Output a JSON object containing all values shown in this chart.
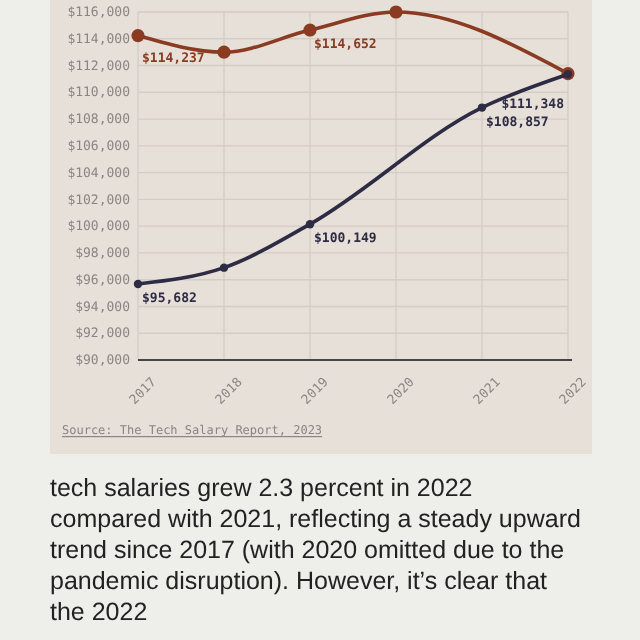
{
  "chart_data": {
    "type": "line",
    "categories": [
      "2017",
      "2018",
      "2019",
      "2020",
      "2021",
      "2022"
    ],
    "series": [
      {
        "color": "#8a3b22",
        "values": [
          114237,
          113000,
          114652,
          116000,
          null,
          111400
        ],
        "value_labels": [
          "$114,237",
          null,
          "$114,652",
          null,
          null,
          null
        ]
      },
      {
        "color": "#2e2b45",
        "values": [
          95682,
          96900,
          100149,
          null,
          108857,
          111348
        ],
        "value_labels": [
          "$95,682",
          null,
          "$100,149",
          null,
          "$108,857",
          "$111,348"
        ]
      }
    ],
    "ylim": [
      90000,
      116000
    ],
    "yticks": [
      {
        "value": 90000,
        "label": "$90,000"
      },
      {
        "value": 92000,
        "label": "$92,000"
      },
      {
        "value": 94000,
        "label": "$94,000"
      },
      {
        "value": 96000,
        "label": "$96,000"
      },
      {
        "value": 98000,
        "label": "$98,000"
      },
      {
        "value": 100000,
        "label": "$100,000"
      },
      {
        "value": 102000,
        "label": "$102,000"
      },
      {
        "value": 104000,
        "label": "$104,000"
      },
      {
        "value": 106000,
        "label": "$106,000"
      },
      {
        "value": 108000,
        "label": "$108,000"
      },
      {
        "value": 110000,
        "label": "$110,000"
      },
      {
        "value": 112000,
        "label": "$112,000"
      },
      {
        "value": 114000,
        "label": "$114,000"
      },
      {
        "value": 116000,
        "label": "$116,000"
      }
    ],
    "grid": true,
    "marker": "circle",
    "line_style": "solid",
    "annotations": [
      "Source: The Tech Salary Report, 2023",
      "tech salaries grew 2.3 percent in 2022 compared with 2021, reflecting a steady upward trend since 2017 (with 2020 omitted due to the pandemic disruption). However, it’s clear that the 2022"
    ]
  }
}
